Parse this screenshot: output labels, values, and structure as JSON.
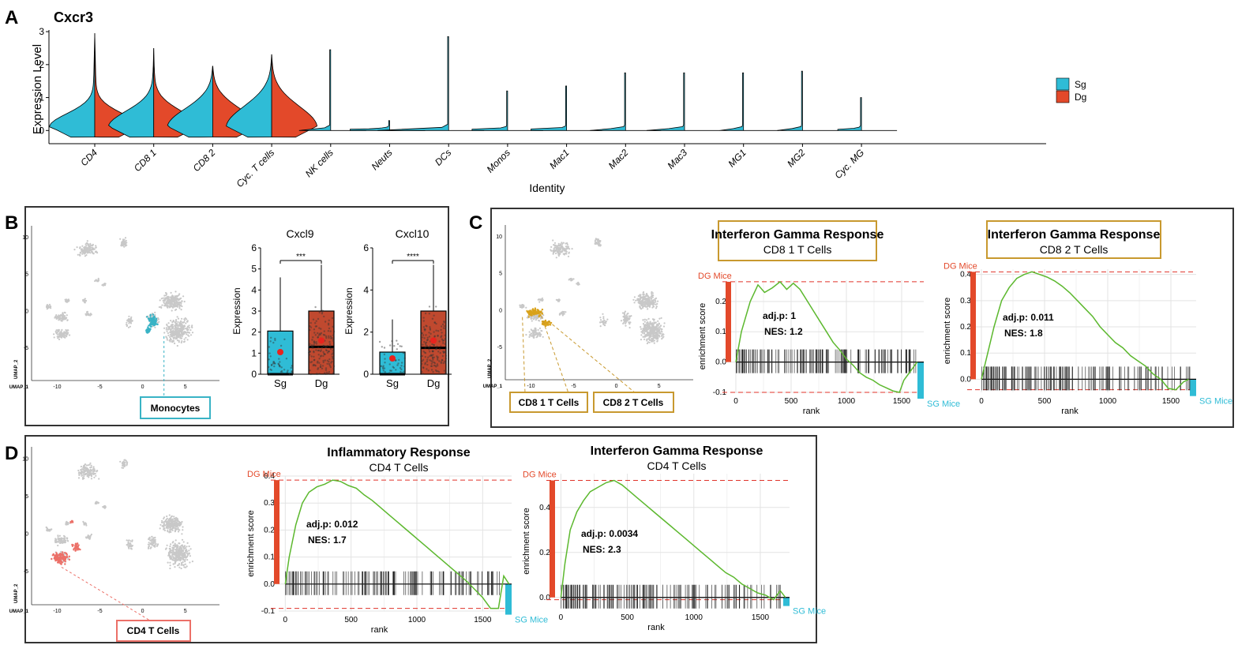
{
  "colors": {
    "sg": "#2fbcd6",
    "dg": "#e3492a",
    "gsea": "#5cb82e",
    "umap_grey": "#c8c8c8",
    "cd8_1": "#d9a21b",
    "cd8_box": "#c8992f",
    "mono_box": "#39b3c5",
    "cd4": "#ec7068",
    "ref_line": "#e0332a"
  },
  "panel_a": {
    "label": "A",
    "chart_data": {
      "type": "split-violin",
      "title": "Cxcr3",
      "xlabel": "Identity",
      "ylabel": "Expression Level",
      "ylim": [
        -0.4,
        3.05
      ],
      "yticks": [
        "0",
        "1",
        "2",
        "3"
      ],
      "categories": [
        "CD4",
        "CD8 1",
        "CD8 2",
        "Cyc. T cells",
        "NK cells",
        "Neuts",
        "DCs",
        "Monos",
        "Mac1",
        "Mac2",
        "Mac3",
        "MG1",
        "MG2",
        "Cyc. MG"
      ],
      "legend": [
        "Sg",
        "Dg"
      ],
      "legend_position": "right",
      "series": [
        {
          "name": "Sg",
          "max": [
            2.95,
            2.5,
            1.95,
            2.3,
            2.45,
            0.3,
            2.85,
            1.2,
            1.35,
            1.75,
            1.75,
            1.75,
            1.8,
            1.0
          ]
        },
        {
          "name": "Dg",
          "max": [
            2.95,
            2.5,
            1.95,
            2.3,
            0,
            0,
            0,
            0,
            0,
            0,
            0,
            0,
            0,
            0
          ]
        }
      ]
    }
  },
  "panel_b": {
    "label": "B",
    "umap": {
      "xlabel": "UMAP_1",
      "ylabel": "UMAP_2",
      "yticks": [
        "10",
        "5",
        "0",
        "-5"
      ],
      "xticks": [
        "-10",
        "-5",
        "0",
        "5"
      ],
      "highlight_label": "Monocytes"
    },
    "chart_data": [
      {
        "type": "box",
        "title": "Cxcl9",
        "ylabel": "Expression",
        "ylim": [
          0,
          6
        ],
        "yticks": [
          "0",
          "1",
          "2",
          "3",
          "4",
          "5",
          "6"
        ],
        "categories": [
          "Sg",
          "Dg"
        ],
        "significance": "***",
        "boxes": [
          {
            "name": "Sg",
            "q1": 0,
            "median": 0,
            "q3": 2.05,
            "whisker_high": 4.6,
            "mean": 1.05
          },
          {
            "name": "Dg",
            "q1": 0,
            "median": 1.3,
            "q3": 3.0,
            "whisker_high": 5.2,
            "mean": 1.6
          }
        ]
      },
      {
        "type": "box",
        "title": "Cxcl10",
        "ylabel": "Expression",
        "ylim": [
          0,
          6
        ],
        "yticks": [
          "0",
          "2",
          "4",
          "6"
        ],
        "categories": [
          "Sg",
          "Dg"
        ],
        "significance": "****",
        "boxes": [
          {
            "name": "Sg",
            "q1": 0,
            "median": 0,
            "q3": 1.05,
            "whisker_high": 2.6,
            "mean": 0.75
          },
          {
            "name": "Dg",
            "q1": 0,
            "median": 1.25,
            "q3": 3.0,
            "whisker_high": 5.2,
            "mean": 1.6
          }
        ]
      }
    ]
  },
  "panel_c": {
    "label": "C",
    "umap": {
      "xlabel": "UMAP_1",
      "ylabel": "UMAP_2",
      "yticks": [
        "10",
        "5",
        "0",
        "-5"
      ],
      "xticks": [
        "-10",
        "-5",
        "0",
        "5"
      ],
      "box_labels": [
        "CD8 1 T Cells",
        "CD8 2 T Cells"
      ]
    },
    "chart_data": [
      {
        "type": "line",
        "title": "Interferon Gamma Response",
        "subtitle": "CD8 1 T Cells",
        "xlabel": "rank",
        "ylabel": "enrichment score",
        "xlim": [
          -50,
          1700
        ],
        "ylim": [
          -0.1,
          0.27
        ],
        "xticks": [
          "0",
          "500",
          "1000",
          "1500"
        ],
        "yticks": [
          "0.2",
          "0.1",
          "0.0",
          "-0.1"
        ],
        "stat1": "adj.p:  1",
        "stat2": "NES: 1.2",
        "top_label": "DG Mice",
        "bottom_label": "SG Mice",
        "x": [
          0,
          50,
          130,
          200,
          260,
          330,
          400,
          460,
          520,
          580,
          640,
          700,
          760,
          820,
          880,
          940,
          1000,
          1060,
          1120,
          1180,
          1240,
          1300,
          1360,
          1420,
          1480,
          1520,
          1560,
          1600,
          1640
        ],
        "y": [
          0,
          0.1,
          0.2,
          0.255,
          0.23,
          0.245,
          0.265,
          0.24,
          0.26,
          0.24,
          0.205,
          0.17,
          0.135,
          0.1,
          0.065,
          0.04,
          0.01,
          -0.01,
          -0.035,
          -0.05,
          -0.06,
          -0.075,
          -0.085,
          -0.095,
          -0.1,
          -0.06,
          -0.04,
          -0.02,
          0
        ]
      },
      {
        "type": "line",
        "title": "Interferon Gamma Response",
        "subtitle": "CD8 2 T Cells",
        "xlabel": "rank",
        "ylabel": "enrichment score",
        "xlim": [
          -50,
          1700
        ],
        "ylim": [
          -0.05,
          0.42
        ],
        "xticks": [
          "0",
          "500",
          "1000",
          "1500"
        ],
        "yticks": [
          "0.4",
          "0.3",
          "0.2",
          "0.1",
          "0.0"
        ],
        "stat1": "adj.p:  0.011",
        "stat2": "NES: 1.8",
        "top_label": "DG Mice",
        "bottom_label": "SG Mice",
        "x": [
          0,
          40,
          100,
          160,
          220,
          280,
          340,
          400,
          460,
          520,
          580,
          640,
          700,
          760,
          820,
          880,
          940,
          1000,
          1060,
          1120,
          1180,
          1240,
          1300,
          1360,
          1420,
          1480,
          1540,
          1600,
          1640
        ],
        "y": [
          0,
          0.08,
          0.2,
          0.3,
          0.35,
          0.385,
          0.4,
          0.41,
          0.4,
          0.39,
          0.375,
          0.355,
          0.33,
          0.3,
          0.27,
          0.24,
          0.2,
          0.17,
          0.14,
          0.12,
          0.09,
          0.07,
          0.05,
          0.02,
          0.0,
          -0.035,
          -0.04,
          -0.01,
          0
        ]
      }
    ]
  },
  "panel_d": {
    "label": "D",
    "umap": {
      "xlabel": "UMAP_1",
      "ylabel": "UMAP_2",
      "yticks": [
        "10",
        "5",
        "0",
        "-5"
      ],
      "xticks": [
        "-10",
        "-5",
        "0",
        "5"
      ],
      "highlight_label": "CD4 T Cells"
    },
    "chart_data": [
      {
        "type": "line",
        "title": "Inflammatory Response",
        "subtitle": "CD4 T Cells",
        "xlabel": "rank",
        "ylabel": "enrichment score",
        "xlim": [
          -50,
          1720
        ],
        "ylim": [
          -0.1,
          0.4
        ],
        "xticks": [
          "0",
          "500",
          "1000",
          "1500"
        ],
        "yticks": [
          "0.4",
          "0.3",
          "0.2",
          "0.1",
          "0.0",
          "-0.1"
        ],
        "stat1": "adj.p:  0.012",
        "stat2": "NES: 1.7",
        "top_label": "DG Mice",
        "bottom_label": "SG Mice",
        "x": [
          0,
          30,
          80,
          130,
          180,
          240,
          300,
          360,
          420,
          480,
          540,
          600,
          660,
          720,
          780,
          840,
          900,
          960,
          1020,
          1080,
          1140,
          1200,
          1260,
          1320,
          1380,
          1440,
          1500,
          1560,
          1620,
          1660,
          1700
        ],
        "y": [
          0,
          0.1,
          0.22,
          0.3,
          0.34,
          0.36,
          0.37,
          0.385,
          0.38,
          0.365,
          0.355,
          0.33,
          0.31,
          0.285,
          0.26,
          0.235,
          0.21,
          0.185,
          0.16,
          0.135,
          0.11,
          0.085,
          0.06,
          0.035,
          0.01,
          -0.02,
          -0.05,
          -0.09,
          -0.09,
          0.03,
          0
        ]
      },
      {
        "type": "line",
        "title": "Interferon Gamma Response",
        "subtitle": "CD4 T Cells",
        "xlabel": "rank",
        "ylabel": "enrichment score",
        "xlim": [
          -50,
          1720
        ],
        "ylim": [
          -0.05,
          0.55
        ],
        "xticks": [
          "0",
          "500",
          "1000",
          "1500"
        ],
        "yticks": [
          "0.4",
          "0.2",
          "0.0"
        ],
        "stat1": "adj.p:  0.0034",
        "stat2": "NES: 2.3",
        "top_label": "DG Mice",
        "bottom_label": "SG Mice",
        "x": [
          0,
          30,
          70,
          120,
          170,
          220,
          280,
          340,
          400,
          460,
          520,
          580,
          640,
          700,
          760,
          820,
          880,
          940,
          1000,
          1060,
          1120,
          1180,
          1240,
          1300,
          1360,
          1420,
          1480,
          1540,
          1600,
          1650,
          1690
        ],
        "y": [
          0,
          0.15,
          0.3,
          0.38,
          0.43,
          0.47,
          0.49,
          0.51,
          0.52,
          0.5,
          0.47,
          0.44,
          0.41,
          0.38,
          0.35,
          0.32,
          0.29,
          0.26,
          0.23,
          0.2,
          0.17,
          0.14,
          0.11,
          0.09,
          0.06,
          0.04,
          0.02,
          0.01,
          -0.01,
          0.03,
          0
        ]
      }
    ]
  }
}
